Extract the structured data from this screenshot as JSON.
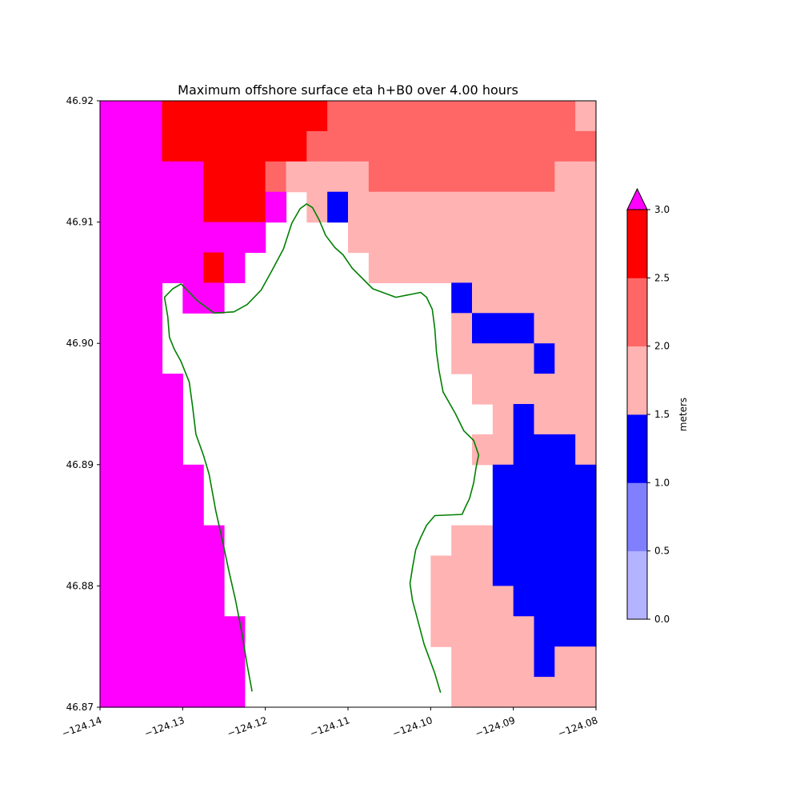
{
  "chart_data": {
    "type": "heatmap",
    "title": "Maximum offshore surface eta h+B0 over 4.00 hours",
    "xlabel": "",
    "ylabel": "",
    "xlim": [
      -124.14,
      -124.08
    ],
    "ylim": [
      46.87,
      46.92
    ],
    "x_ticks": [
      -124.14,
      -124.13,
      -124.12,
      -124.11,
      -124.1,
      -124.09,
      -124.08
    ],
    "x_tick_labels": [
      "−124.14",
      "−124.13",
      "−124.12",
      "−124.11",
      "−124.10",
      "−124.09",
      "−124.08"
    ],
    "y_ticks": [
      46.87,
      46.88,
      46.89,
      46.9,
      46.91,
      46.92
    ],
    "y_tick_labels": [
      "46.87",
      "46.88",
      "46.89",
      "46.90",
      "46.91",
      "46.92"
    ],
    "grid_x0": -124.14,
    "grid_dx": 0.0025,
    "grid_y0": 46.92,
    "grid_dy": -0.0025,
    "grid_note_levels": "cell values are color-level indices: -1 = dry land (no data), 0 = 0.0-0.5, 1 = 0.5-1.0, 2 = 1.0-1.5, 3 = 1.5-2.0, 4 = 2.0-2.5, 5 = 2.5-3.0, 6 = above 3.0",
    "grid": [
      [
        6,
        6,
        6,
        5,
        5,
        5,
        5,
        5,
        5,
        5,
        5,
        4,
        4,
        4,
        4,
        4,
        4,
        4,
        4,
        4,
        4,
        4,
        4,
        3,
        3
      ],
      [
        6,
        6,
        6,
        5,
        5,
        5,
        5,
        5,
        5,
        5,
        4,
        4,
        4,
        4,
        4,
        4,
        4,
        4,
        4,
        4,
        4,
        4,
        4,
        4,
        4
      ],
      [
        6,
        6,
        6,
        6,
        6,
        5,
        5,
        5,
        4,
        3,
        3,
        3,
        3,
        4,
        4,
        4,
        4,
        4,
        4,
        4,
        4,
        4,
        3,
        3,
        3
      ],
      [
        6,
        6,
        6,
        6,
        6,
        5,
        5,
        5,
        6,
        -1,
        3,
        2,
        3,
        3,
        3,
        3,
        3,
        3,
        3,
        3,
        3,
        3,
        3,
        3,
        3
      ],
      [
        6,
        6,
        6,
        6,
        6,
        6,
        6,
        6,
        -1,
        -1,
        -1,
        -1,
        3,
        3,
        3,
        3,
        3,
        3,
        3,
        3,
        3,
        3,
        3,
        3,
        3
      ],
      [
        6,
        6,
        6,
        6,
        6,
        5,
        6,
        -1,
        -1,
        -1,
        -1,
        -1,
        -1,
        3,
        3,
        3,
        3,
        3,
        3,
        3,
        3,
        3,
        3,
        3,
        3
      ],
      [
        6,
        6,
        6,
        -1,
        6,
        6,
        -1,
        -1,
        -1,
        -1,
        -1,
        -1,
        -1,
        -1,
        -1,
        -1,
        -1,
        2,
        3,
        3,
        3,
        3,
        3,
        3,
        3
      ],
      [
        6,
        6,
        6,
        -1,
        -1,
        -1,
        -1,
        -1,
        -1,
        -1,
        -1,
        -1,
        -1,
        -1,
        -1,
        -1,
        -1,
        3,
        2,
        2,
        2,
        3,
        3,
        3,
        3
      ],
      [
        6,
        6,
        6,
        -1,
        -1,
        -1,
        -1,
        -1,
        -1,
        -1,
        -1,
        -1,
        -1,
        -1,
        -1,
        -1,
        -1,
        3,
        3,
        3,
        3,
        2,
        3,
        3,
        3
      ],
      [
        6,
        6,
        6,
        6,
        -1,
        -1,
        -1,
        -1,
        -1,
        -1,
        -1,
        -1,
        -1,
        -1,
        -1,
        -1,
        -1,
        -1,
        3,
        3,
        3,
        3,
        3,
        3,
        3
      ],
      [
        6,
        6,
        6,
        6,
        -1,
        -1,
        -1,
        -1,
        -1,
        -1,
        -1,
        -1,
        -1,
        -1,
        -1,
        -1,
        -1,
        -1,
        -1,
        3,
        2,
        3,
        3,
        3,
        3
      ],
      [
        6,
        6,
        6,
        6,
        -1,
        -1,
        -1,
        -1,
        -1,
        -1,
        -1,
        -1,
        -1,
        -1,
        -1,
        -1,
        -1,
        -1,
        3,
        3,
        2,
        2,
        2,
        3,
        3
      ],
      [
        6,
        6,
        6,
        6,
        6,
        -1,
        -1,
        -1,
        -1,
        -1,
        -1,
        -1,
        -1,
        -1,
        -1,
        -1,
        -1,
        -1,
        -1,
        2,
        2,
        2,
        2,
        2,
        3
      ],
      [
        6,
        6,
        6,
        6,
        6,
        -1,
        -1,
        -1,
        -1,
        -1,
        -1,
        -1,
        -1,
        -1,
        -1,
        -1,
        -1,
        -1,
        -1,
        2,
        2,
        2,
        2,
        2,
        2
      ],
      [
        6,
        6,
        6,
        6,
        6,
        6,
        -1,
        -1,
        -1,
        -1,
        -1,
        -1,
        -1,
        -1,
        -1,
        -1,
        -1,
        3,
        3,
        2,
        2,
        2,
        2,
        2,
        2
      ],
      [
        6,
        6,
        6,
        6,
        6,
        6,
        -1,
        -1,
        -1,
        -1,
        -1,
        -1,
        -1,
        -1,
        -1,
        -1,
        3,
        3,
        3,
        2,
        2,
        2,
        2,
        2,
        2
      ],
      [
        6,
        6,
        6,
        6,
        6,
        6,
        -1,
        -1,
        -1,
        -1,
        -1,
        -1,
        -1,
        -1,
        -1,
        -1,
        3,
        3,
        3,
        3,
        2,
        2,
        2,
        2,
        2
      ],
      [
        6,
        6,
        6,
        6,
        6,
        6,
        6,
        -1,
        -1,
        -1,
        -1,
        -1,
        -1,
        -1,
        -1,
        -1,
        3,
        3,
        3,
        3,
        3,
        2,
        2,
        2,
        2
      ],
      [
        6,
        6,
        6,
        6,
        6,
        6,
        6,
        -1,
        -1,
        -1,
        -1,
        -1,
        -1,
        -1,
        -1,
        -1,
        -1,
        3,
        3,
        3,
        3,
        2,
        3,
        3,
        3
      ],
      [
        6,
        6,
        6,
        6,
        6,
        6,
        6,
        -1,
        -1,
        -1,
        -1,
        -1,
        -1,
        -1,
        -1,
        -1,
        -1,
        3,
        3,
        3,
        3,
        3,
        3,
        3,
        3
      ],
      [
        6,
        6,
        6,
        6,
        6,
        6,
        6,
        -1,
        -1,
        -1,
        -1,
        -1,
        -1,
        -1,
        -1,
        -1,
        -1,
        -1,
        3,
        3,
        3,
        3,
        3,
        3,
        3
      ]
    ],
    "coastline_west": [
      [
        -124.1216,
        46.8713
      ],
      [
        -124.1222,
        46.8735
      ],
      [
        -124.1228,
        46.876
      ],
      [
        -124.1236,
        46.8788
      ],
      [
        -124.1244,
        46.8812
      ],
      [
        -124.1252,
        46.8838
      ],
      [
        -124.126,
        46.8862
      ],
      [
        -124.1268,
        46.8892
      ],
      [
        -124.1275,
        46.8908
      ],
      [
        -124.1284,
        46.8925
      ],
      [
        -124.1288,
        46.8948
      ],
      [
        -124.1292,
        46.8968
      ],
      [
        -124.1302,
        46.8985
      ],
      [
        -124.131,
        46.8995
      ],
      [
        -124.1316,
        46.9005
      ],
      [
        -124.1318,
        46.9022
      ],
      [
        -124.1322,
        46.9038
      ],
      [
        -124.1312,
        46.9045
      ],
      [
        -124.1302,
        46.9049
      ],
      [
        -124.1292,
        46.9042
      ],
      [
        -124.1282,
        46.9035
      ],
      [
        -124.1262,
        46.9025
      ],
      [
        -124.1238,
        46.9026
      ],
      [
        -124.1222,
        46.9032
      ],
      [
        -124.1205,
        46.9044
      ],
      [
        -124.1192,
        46.906
      ],
      [
        -124.1178,
        46.9078
      ],
      [
        -124.1168,
        46.9099
      ],
      [
        -124.1158,
        46.9111
      ],
      [
        -124.115,
        46.9115
      ],
      [
        -124.1143,
        46.9112
      ],
      [
        -124.1135,
        46.9102
      ],
      [
        -124.1127,
        46.9089
      ],
      [
        -124.1116,
        46.9079
      ],
      [
        -124.1106,
        46.9073
      ],
      [
        -124.1095,
        46.9062
      ],
      [
        -124.107,
        46.9045
      ],
      [
        -124.1042,
        46.9038
      ],
      [
        -124.1012,
        46.9042
      ],
      [
        -124.1005,
        46.9038
      ],
      [
        -124.0998,
        46.9028
      ],
      [
        -124.0995,
        46.9012
      ],
      [
        -124.0993,
        46.8993
      ],
      [
        -124.099,
        46.8978
      ],
      [
        -124.0985,
        46.896
      ],
      [
        -124.097,
        46.8942
      ],
      [
        -124.096,
        46.8928
      ],
      [
        -124.0948,
        46.892
      ],
      [
        -124.0942,
        46.8908
      ],
      [
        -124.0945,
        46.8898
      ],
      [
        -124.0948,
        46.8885
      ],
      [
        -124.0953,
        46.8872
      ],
      [
        -124.0958,
        46.8865
      ],
      [
        -124.0962,
        46.8859
      ],
      [
        -124.0995,
        46.8858
      ],
      [
        -124.1005,
        46.885
      ],
      [
        -124.1012,
        46.884
      ],
      [
        -124.1018,
        46.883
      ],
      [
        -124.1022,
        46.8815
      ],
      [
        -124.1025,
        46.8802
      ],
      [
        -124.1022,
        46.8788
      ],
      [
        -124.1018,
        46.8778
      ],
      [
        -124.1008,
        46.8752
      ],
      [
        -124.0995,
        46.8728
      ],
      [
        -124.0988,
        46.8712
      ]
    ],
    "colorbar": {
      "label": "meters",
      "ticks": [
        0.0,
        0.5,
        1.0,
        1.5,
        2.0,
        2.5,
        3.0
      ],
      "tick_labels": [
        "0.0",
        "0.5",
        "1.0",
        "1.5",
        "2.0",
        "2.5",
        "3.0"
      ],
      "levels": [
        {
          "from": 0.0,
          "to": 0.5,
          "color": "#b3b3ff"
        },
        {
          "from": 0.5,
          "to": 1.0,
          "color": "#8080ff"
        },
        {
          "from": 1.0,
          "to": 1.5,
          "color": "#0000ff"
        },
        {
          "from": 1.5,
          "to": 2.0,
          "color": "#ffb3b3"
        },
        {
          "from": 2.0,
          "to": 2.5,
          "color": "#ff6666"
        },
        {
          "from": 2.5,
          "to": 3.0,
          "color": "#ff0000"
        }
      ],
      "extend_max_color": "#ff00ff"
    },
    "coastline_color": "#008000",
    "grid_lines": false,
    "legend": "none"
  }
}
